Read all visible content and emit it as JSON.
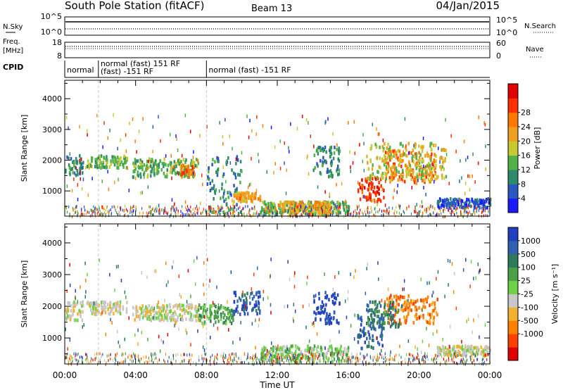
{
  "header": {
    "station": "South Pole Station (fitACF)",
    "beam": "Beam 13",
    "date": "04/Jan/2015"
  },
  "top_panel": {
    "left_label": "N.Sky",
    "right_label": "N.Search",
    "left_ticks": [
      "10^5",
      "10^0"
    ],
    "right_ticks": [
      "10^5",
      "10^0"
    ]
  },
  "freq_panel": {
    "left_label_1": "Freq.",
    "left_label_2": "[MHz]",
    "right_label": "Nave",
    "left_ticks": [
      "18",
      "8"
    ],
    "right_ticks": [
      "60",
      "0"
    ]
  },
  "cpid": {
    "label": "CPID",
    "segments": [
      {
        "start": 0,
        "end": 1.9,
        "lines": [
          "normal"
        ]
      },
      {
        "start": 1.9,
        "end": 8.0,
        "lines": [
          "normal (fast) 151 RF",
          "(fast) -151 RF"
        ]
      },
      {
        "start": 8.0,
        "end": 24,
        "lines": [
          "normal (fast) -151 RF"
        ]
      }
    ]
  },
  "chart_data": [
    {
      "type": "heatmap",
      "parameter": "Power",
      "ylabel": "Slant Range [km]",
      "colorbar_label": "Power [dB]",
      "colorbar_ticks": [
        "4",
        "8",
        "12",
        "16",
        "20",
        "24",
        "28"
      ],
      "colorbar_colors": [
        "#1a1aff",
        "#2a58c0",
        "#2e8a6a",
        "#52b048",
        "#c8c832",
        "#f0a020",
        "#ff7800",
        "#ff3000",
        "#e00000"
      ],
      "ylim": [
        180,
        4600
      ],
      "yticks": [
        1000,
        2000,
        3000,
        4000
      ],
      "xlim": [
        0,
        24
      ],
      "echo_regions": [
        {
          "t0": 0.0,
          "t1": 1.0,
          "r0": 1500,
          "r1": 2200,
          "level": 2
        },
        {
          "t0": 1.2,
          "t1": 3.5,
          "r0": 1800,
          "r1": 2200,
          "level": 3
        },
        {
          "t0": 3.8,
          "t1": 7.5,
          "r0": 1500,
          "r1": 2100,
          "level": 3
        },
        {
          "t0": 6.5,
          "t1": 7.3,
          "r0": 1500,
          "r1": 1900,
          "level": 6
        },
        {
          "t0": 8.0,
          "t1": 10.0,
          "r0": 300,
          "r1": 2200,
          "level": 2
        },
        {
          "t0": 9.5,
          "t1": 11.0,
          "r0": 700,
          "r1": 1000,
          "level": 5
        },
        {
          "t0": 11.0,
          "t1": 16.0,
          "r0": 300,
          "r1": 700,
          "level": 3
        },
        {
          "t0": 12.0,
          "t1": 15.0,
          "r0": 300,
          "r1": 700,
          "level": 5
        },
        {
          "t0": 14.0,
          "t1": 15.5,
          "r0": 1500,
          "r1": 2500,
          "level": 2
        },
        {
          "t0": 16.5,
          "t1": 18.0,
          "r0": 700,
          "r1": 1500,
          "level": 7
        },
        {
          "t0": 18.0,
          "t1": 21.0,
          "r0": 1300,
          "r1": 2400,
          "level": 6
        },
        {
          "t0": 17.0,
          "t1": 21.5,
          "r0": 1400,
          "r1": 2600,
          "level": 4
        },
        {
          "t0": 21.0,
          "t1": 24.0,
          "r0": 500,
          "r1": 800,
          "level": 1
        }
      ]
    },
    {
      "type": "heatmap",
      "parameter": "Velocity",
      "ylabel": "Slant Range [km]",
      "colorbar_label": "Velocity [m s⁻¹]",
      "colorbar_ticks": [
        "1000",
        "500",
        "100",
        "25",
        "-25",
        "-100",
        "-500",
        "-1000"
      ],
      "colorbar_colors": [
        "#2040c0",
        "#3060b0",
        "#2e7a5a",
        "#4ea048",
        "#70d048",
        "#c8c8c8",
        "#f0b030",
        "#ff8000",
        "#ff4000",
        "#e00000"
      ],
      "ylim": [
        180,
        4600
      ],
      "yticks": [
        1000,
        2000,
        3000,
        4000
      ],
      "xlim": [
        0,
        24
      ],
      "echo_regions": [
        {
          "t0": 0.0,
          "t1": 1.0,
          "r0": 1600,
          "r1": 2200,
          "level": 5
        },
        {
          "t0": 1.2,
          "t1": 3.5,
          "r0": 1800,
          "r1": 2200,
          "level": 5
        },
        {
          "t0": 3.8,
          "t1": 7.5,
          "r0": 1600,
          "r1": 2100,
          "level": 5
        },
        {
          "t0": 7.5,
          "t1": 9.5,
          "r0": 1500,
          "r1": 2100,
          "level": 3
        },
        {
          "t0": 9.5,
          "t1": 11.0,
          "r0": 1800,
          "r1": 2500,
          "level": 1
        },
        {
          "t0": 11.0,
          "t1": 16.0,
          "r0": 300,
          "r1": 800,
          "level": 4
        },
        {
          "t0": 14.0,
          "t1": 15.5,
          "r0": 1500,
          "r1": 2500,
          "level": 0
        },
        {
          "t0": 16.5,
          "t1": 18.0,
          "r0": 700,
          "r1": 1800,
          "level": 1
        },
        {
          "t0": 18.0,
          "t1": 21.0,
          "r0": 1500,
          "r1": 2400,
          "level": 7
        },
        {
          "t0": 17.0,
          "t1": 19.0,
          "r0": 1400,
          "r1": 2200,
          "level": 2
        },
        {
          "t0": 21.0,
          "t1": 24.0,
          "r0": 500,
          "r1": 800,
          "level": 5
        }
      ]
    }
  ],
  "x_axis": {
    "label": "Time UT",
    "ticks": [
      "00:00",
      "04:00",
      "08:00",
      "12:00",
      "16:00",
      "20:00",
      "00:00"
    ],
    "tick_hours": [
      0,
      4,
      8,
      12,
      16,
      20,
      24
    ]
  }
}
